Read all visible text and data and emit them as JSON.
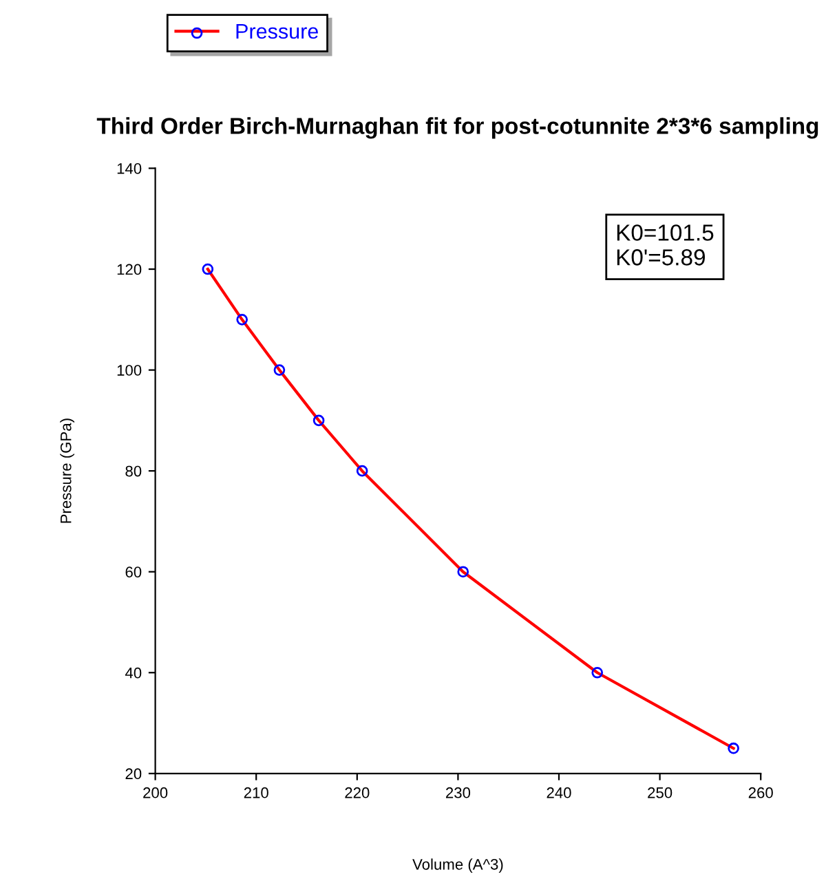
{
  "chart_data": {
    "type": "line",
    "title": "Third Order Birch-Murnaghan fit for post-cotunnite 2*3*6 sampling",
    "xlabel": "Volume (A^3)",
    "ylabel": "Pressure (GPa)",
    "x": [
      205.2,
      208.6,
      212.3,
      216.2,
      220.5,
      230.5,
      243.8,
      257.3
    ],
    "series": [
      {
        "name": "Pressure",
        "color": "#ff0000",
        "values": [
          120,
          110,
          100,
          90,
          80,
          60,
          40,
          25
        ]
      },
      {
        "type": "scatter",
        "marker": "circle",
        "color": "#0000ff",
        "values": [
          120,
          110,
          100,
          90,
          80,
          60,
          40,
          25
        ]
      }
    ],
    "xlim": [
      200,
      260
    ],
    "xticks": [
      200,
      210,
      220,
      230,
      240,
      250,
      260
    ],
    "ylim": [
      20,
      140
    ],
    "yticks": [
      20,
      40,
      60,
      80,
      100,
      120,
      140
    ],
    "annotations": [
      "K0=101.5\nK0'=5.89"
    ],
    "line_style": "solid",
    "grid": false,
    "legend": "top left"
  }
}
